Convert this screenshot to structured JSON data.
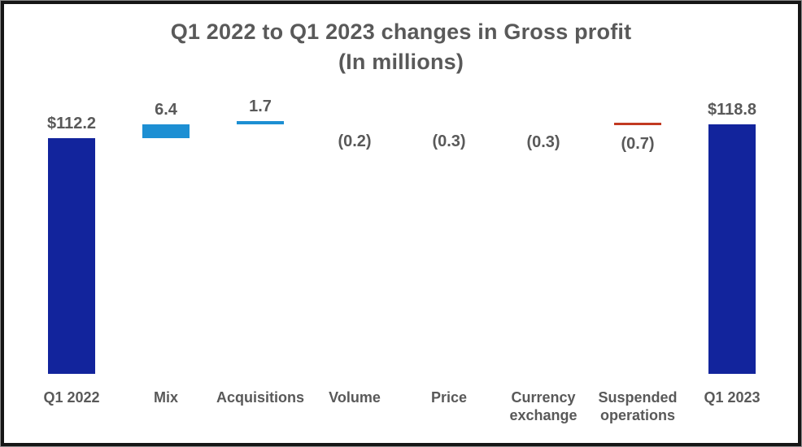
{
  "chart_data": {
    "type": "bar",
    "subtype": "waterfall",
    "title": "Q1 2022 to Q1 2023 changes in Gross profit",
    "subtitle": "(In millions)",
    "categories": [
      "Q1 2022",
      "Mix",
      "Acquisitions",
      "Volume",
      "Price",
      "Currency exchange",
      "Suspended operations",
      "Q1 2023"
    ],
    "columns": [
      {
        "category": "Q1 2022",
        "label": "$112.2",
        "value": 112.2,
        "kind": "total",
        "color": "#12249C"
      },
      {
        "category": "Mix",
        "label": "6.4",
        "value": 6.4,
        "kind": "increase",
        "color": "#1D8FD3"
      },
      {
        "category": "Acquisitions",
        "label": "1.7",
        "value": 1.7,
        "kind": "increase",
        "color": "#1D8FD3"
      },
      {
        "category": "Volume",
        "label": "(0.2)",
        "value": -0.2,
        "kind": "decrease",
        "color": "#C23A21"
      },
      {
        "category": "Price",
        "label": "(0.3)",
        "value": -0.3,
        "kind": "decrease",
        "color": "#C23A21"
      },
      {
        "category": "Currency exchange",
        "label": "(0.3)",
        "value": -0.3,
        "kind": "decrease",
        "color": "#C23A21"
      },
      {
        "category": "Suspended operations",
        "label": "(0.7)",
        "value": -0.7,
        "kind": "decrease",
        "color": "#C23A21"
      },
      {
        "category": "Q1 2023",
        "label": "$118.8",
        "value": 118.8,
        "kind": "total",
        "color": "#12249C"
      }
    ],
    "start_total": 112.2,
    "end_total": 118.8,
    "ylim": [
      0,
      176
    ],
    "axes_visible": false,
    "gridlines": false,
    "legend": "none",
    "colors": {
      "total": "#12249C",
      "increase": "#1D8FD3",
      "decrease": "#C23A21",
      "text": "#595959",
      "frame_border": "#161616",
      "frame_outer_line": "#8c8c8c",
      "background": "#ffffff"
    }
  }
}
